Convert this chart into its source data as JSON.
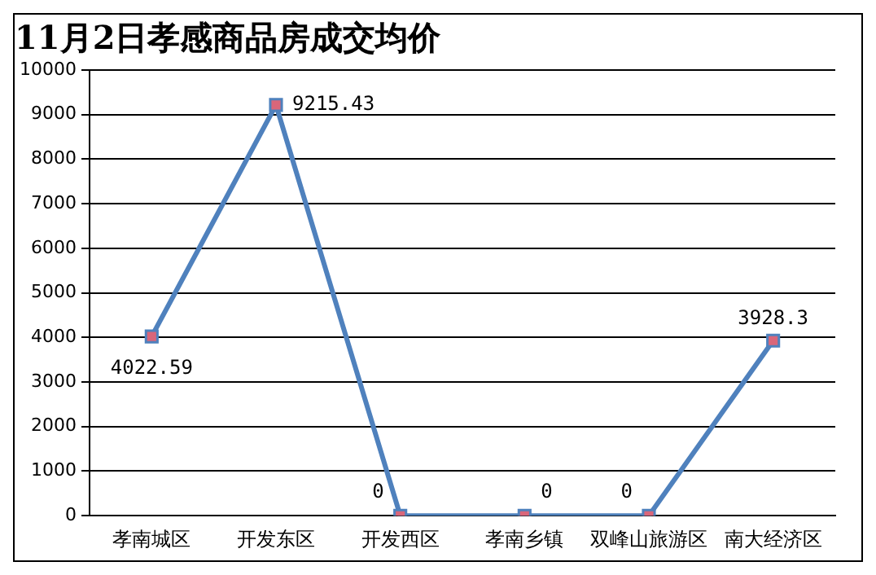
{
  "chart_data": {
    "type": "line",
    "title": "11月2日孝感商品房成交均价",
    "categories": [
      "孝南城区",
      "开发东区",
      "开发西区",
      "孝南乡镇",
      "双峰山旅游区",
      "南大经济区"
    ],
    "series": [
      {
        "color": "#4f81bd",
        "values": [
          4022.59,
          9215.43,
          0,
          0,
          0,
          3928.3
        ]
      }
    ],
    "ylim": [
      0,
      10000
    ],
    "yticks": [
      0,
      1000,
      2000,
      3000,
      4000,
      5000,
      6000,
      7000,
      8000,
      9000,
      10000
    ],
    "grid": "y",
    "marker": "square",
    "line_style": "solid",
    "data_labels": true,
    "legend": false
  }
}
